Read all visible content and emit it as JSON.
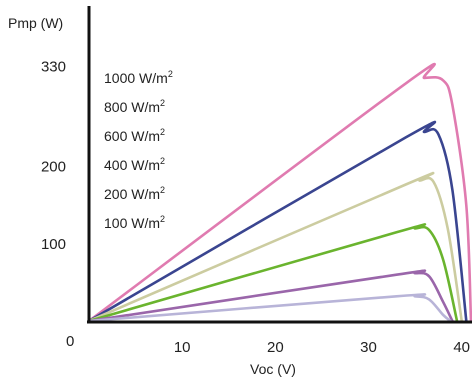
{
  "chart_data": {
    "type": "line",
    "title": "",
    "xlabel": "Voc (V)",
    "ylabel": "Pmp (W)",
    "xlim": [
      0,
      41
    ],
    "ylim": [
      0,
      350
    ],
    "x_ticks": [
      10,
      20,
      30,
      40
    ],
    "y_ticks": [
      100,
      200,
      330
    ],
    "origin_label": "0",
    "grid": false,
    "legend_position": "top-left",
    "series": [
      {
        "name": "1000 W/m",
        "sup": "2",
        "color": "#e07bb0",
        "points": [
          [
            0,
            0
          ],
          [
            34,
            308
          ],
          [
            36,
            315
          ],
          [
            38,
            312
          ],
          [
            39,
            280
          ],
          [
            40.5,
            150
          ],
          [
            41,
            0
          ]
        ]
      },
      {
        "name": "800 W/m",
        "sup": "2",
        "color": "#3a4590",
        "points": [
          [
            0,
            0
          ],
          [
            34,
            238
          ],
          [
            36,
            245
          ],
          [
            37.5,
            242
          ],
          [
            39,
            170
          ],
          [
            40.5,
            0
          ]
        ]
      },
      {
        "name": "600 W/m",
        "sup": "2",
        "color": "#cccca0",
        "points": [
          [
            0,
            0
          ],
          [
            34,
            177
          ],
          [
            35.5,
            182
          ],
          [
            37,
            180
          ],
          [
            38.5,
            120
          ],
          [
            40,
            0
          ]
        ]
      },
      {
        "name": "400 W/m",
        "sup": "2",
        "color": "#6ab42e",
        "points": [
          [
            0,
            0
          ],
          [
            33,
            115
          ],
          [
            35,
            120
          ],
          [
            36.5,
            118
          ],
          [
            38,
            80
          ],
          [
            39.5,
            0
          ]
        ]
      },
      {
        "name": "200 W/m",
        "sup": "2",
        "color": "#9a66aa",
        "points": [
          [
            0,
            0
          ],
          [
            33,
            60
          ],
          [
            35,
            62
          ],
          [
            36.5,
            58
          ],
          [
            38,
            25
          ],
          [
            39,
            0
          ]
        ]
      },
      {
        "name": "100 W/m",
        "sup": "2",
        "color": "#b8b4d8",
        "points": [
          [
            0,
            0
          ],
          [
            33,
            32
          ],
          [
            35,
            32
          ],
          [
            36.5,
            28
          ],
          [
            38,
            8
          ],
          [
            38.8,
            0
          ]
        ]
      }
    ]
  }
}
